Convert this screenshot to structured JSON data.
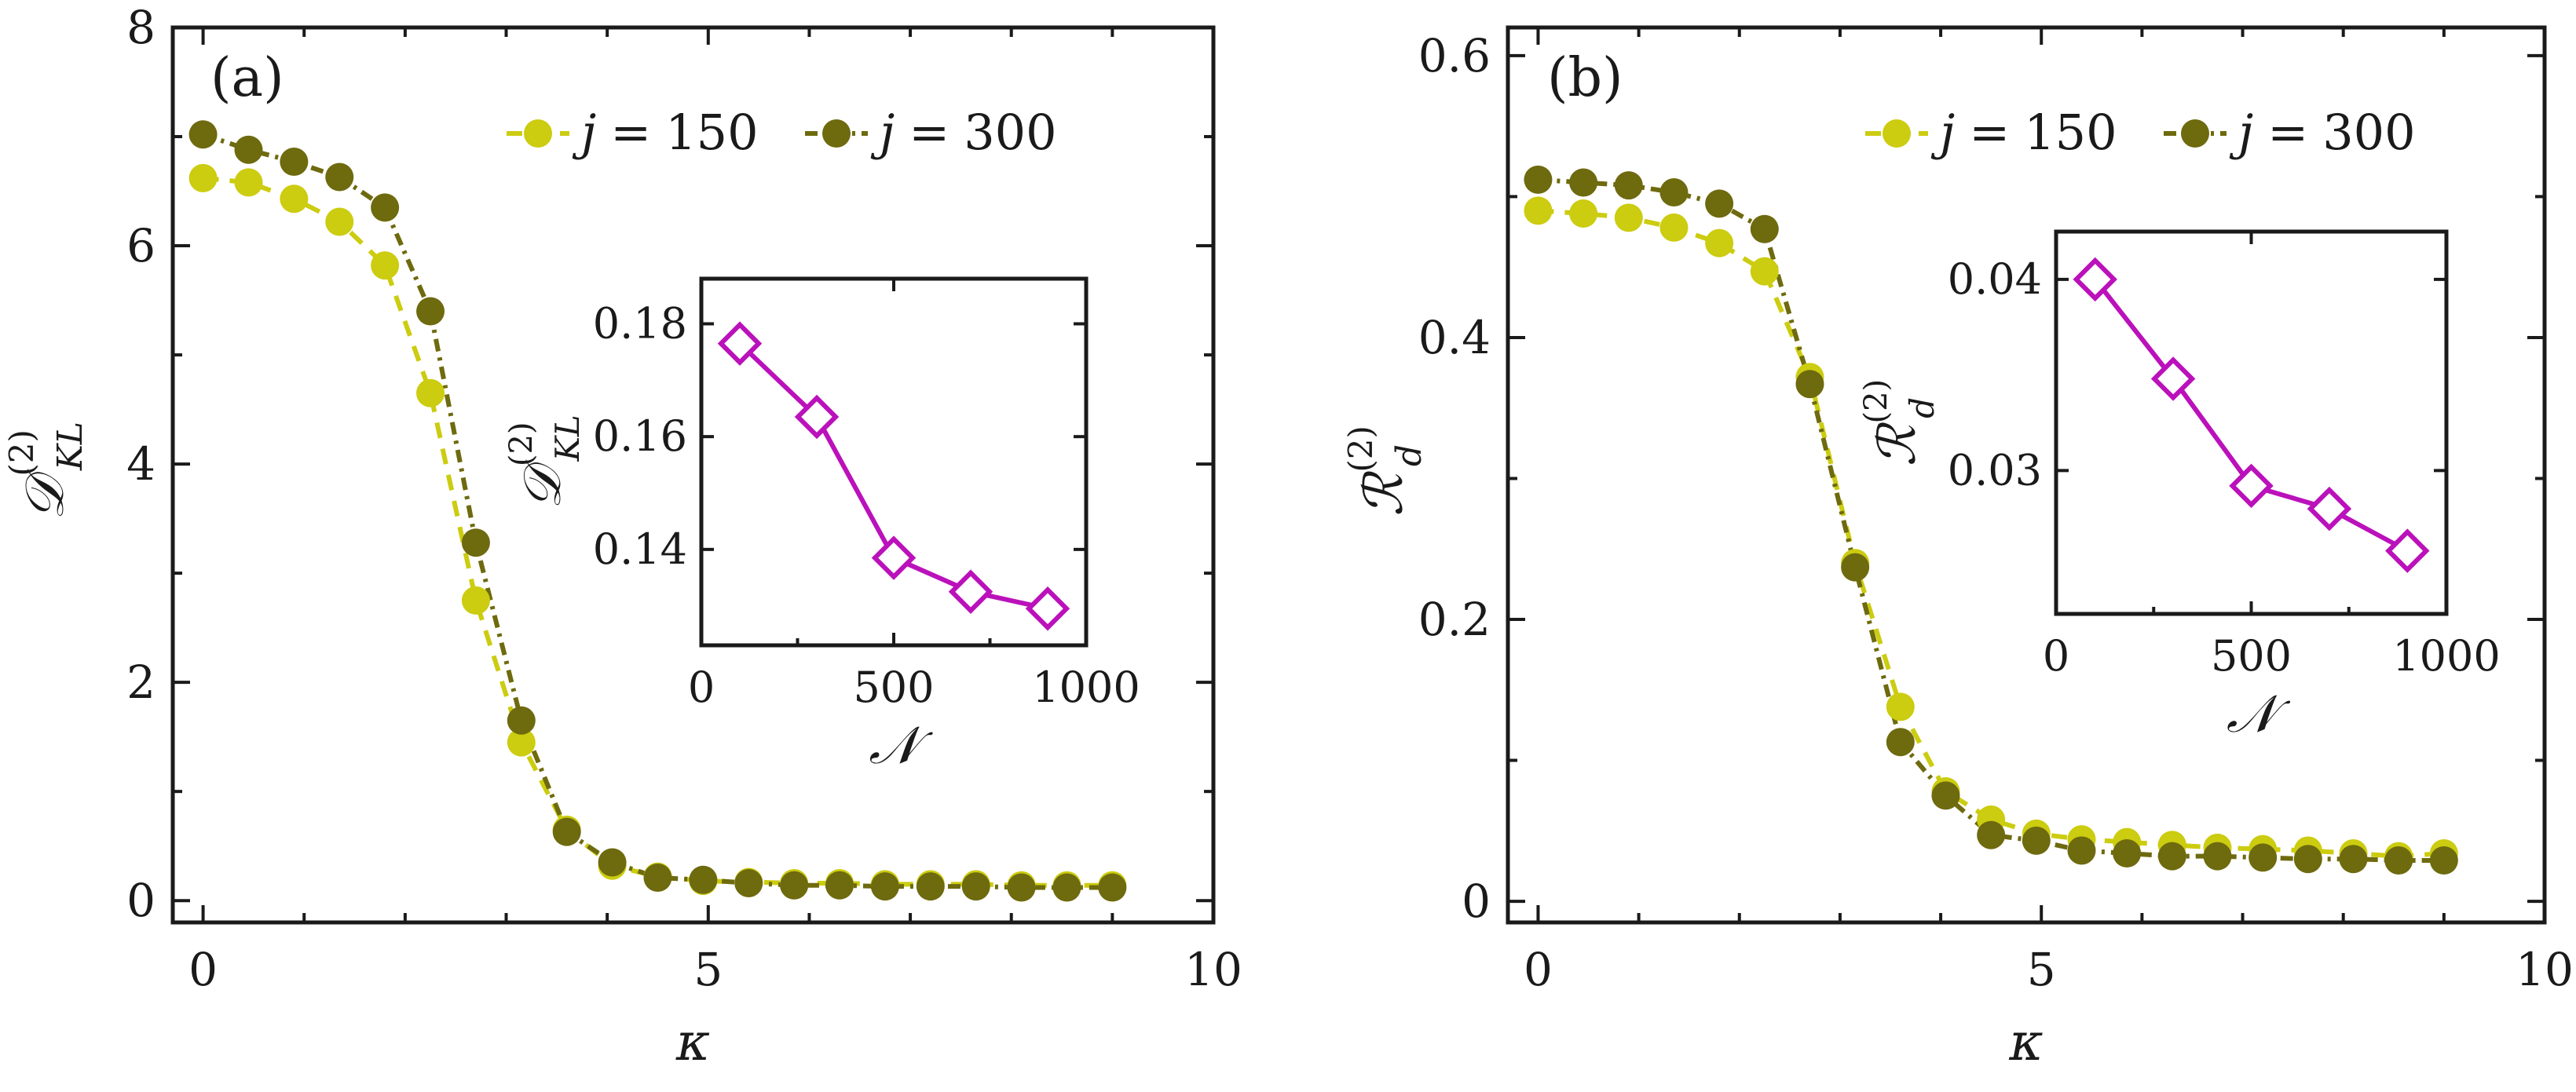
{
  "colors": {
    "j150": "#cccc10",
    "j300": "#6e6a0e",
    "inset": "#bb11bb",
    "axis": "#1a1a1a"
  },
  "chart_data": [
    {
      "type": "line",
      "panel_label": "(a)",
      "xlabel": "κ",
      "ylabel_main": "𝒟",
      "ylabel_sup": "(2)",
      "ylabel_sub": "KL",
      "xlim": [
        -0.3,
        10
      ],
      "ylim": [
        -0.2,
        8
      ],
      "xticks": [
        0,
        5,
        10
      ],
      "yticks": [
        0,
        2,
        4,
        6,
        8
      ],
      "legend_pos": "top-right",
      "series": [
        {
          "name_var": "j",
          "name_eq": "=",
          "name_val": "150",
          "style": "dashed",
          "x": [
            0,
            0.45,
            0.9,
            1.35,
            1.8,
            2.25,
            2.7,
            3.15,
            3.6,
            4.05,
            4.5,
            4.95,
            5.4,
            5.85,
            6.3,
            6.75,
            7.2,
            7.65,
            8.1,
            8.55,
            9.0
          ],
          "y": [
            6.62,
            6.58,
            6.43,
            6.22,
            5.82,
            4.65,
            2.75,
            1.45,
            0.65,
            0.32,
            0.22,
            0.18,
            0.17,
            0.16,
            0.16,
            0.15,
            0.15,
            0.15,
            0.14,
            0.14,
            0.14
          ]
        },
        {
          "name_var": "j",
          "name_eq": "=",
          "name_val": "300",
          "style": "dashdot",
          "x": [
            0,
            0.45,
            0.9,
            1.35,
            1.8,
            2.25,
            2.7,
            3.15,
            3.6,
            4.05,
            4.5,
            4.95,
            5.4,
            5.85,
            6.3,
            6.75,
            7.2,
            7.65,
            8.1,
            8.55,
            9.0
          ],
          "y": [
            7.02,
            6.88,
            6.77,
            6.63,
            6.35,
            5.4,
            3.28,
            1.65,
            0.63,
            0.35,
            0.21,
            0.19,
            0.16,
            0.14,
            0.14,
            0.13,
            0.13,
            0.13,
            0.12,
            0.12,
            0.12
          ]
        }
      ],
      "inset": {
        "type": "line",
        "xlabel": "𝒩",
        "ylabel_main": "𝒟",
        "ylabel_sup": "(2)",
        "ylabel_sub": "KL",
        "xlim": [
          0,
          1000
        ],
        "ylim": [
          0.123,
          0.188
        ],
        "xticks": [
          0,
          500,
          1000
        ],
        "yticks": [
          0.14,
          0.16,
          0.18
        ],
        "ytick_labels": [
          "0.14",
          "0.16",
          "0.18"
        ],
        "x": [
          100,
          300,
          500,
          700,
          900
        ],
        "y": [
          0.1765,
          0.1635,
          0.1385,
          0.1325,
          0.1295
        ]
      }
    },
    {
      "type": "line",
      "panel_label": "(b)",
      "xlabel": "κ",
      "ylabel_main": "ℛ",
      "ylabel_sup": "(2)",
      "ylabel_sub": "d",
      "xlim": [
        -0.3,
        10
      ],
      "ylim": [
        -0.015,
        0.62
      ],
      "xticks": [
        0,
        5,
        10
      ],
      "yticks": [
        0,
        0.2,
        0.4,
        0.6
      ],
      "ytick_labels": [
        "0",
        "0.2",
        "0.4",
        "0.6"
      ],
      "legend_pos": "top-right",
      "series": [
        {
          "name_var": "j",
          "name_eq": "=",
          "name_val": "150",
          "style": "dashed",
          "x": [
            0,
            0.45,
            0.9,
            1.35,
            1.8,
            2.25,
            2.7,
            3.15,
            3.6,
            4.05,
            4.5,
            4.95,
            5.4,
            5.85,
            6.3,
            6.75,
            7.2,
            7.65,
            8.1,
            8.55,
            9.0
          ],
          "y": [
            0.49,
            0.488,
            0.485,
            0.478,
            0.467,
            0.447,
            0.372,
            0.24,
            0.138,
            0.078,
            0.058,
            0.048,
            0.044,
            0.042,
            0.04,
            0.038,
            0.037,
            0.036,
            0.034,
            0.032,
            0.034
          ]
        },
        {
          "name_var": "j",
          "name_eq": "=",
          "name_val": "300",
          "style": "dashdot",
          "x": [
            0,
            0.45,
            0.9,
            1.35,
            1.8,
            2.25,
            2.7,
            3.15,
            3.6,
            4.05,
            4.5,
            4.95,
            5.4,
            5.85,
            6.3,
            6.75,
            7.2,
            7.65,
            8.1,
            8.55,
            9.0
          ],
          "y": [
            0.512,
            0.51,
            0.508,
            0.503,
            0.495,
            0.477,
            0.367,
            0.237,
            0.113,
            0.075,
            0.047,
            0.043,
            0.036,
            0.034,
            0.032,
            0.032,
            0.031,
            0.03,
            0.03,
            0.029,
            0.029
          ]
        }
      ],
      "inset": {
        "type": "line",
        "xlabel": "𝒩",
        "ylabel_main": "ℛ",
        "ylabel_sup": "(2)",
        "ylabel_sub": "d",
        "xlim": [
          0,
          1000
        ],
        "ylim": [
          0.0225,
          0.0425
        ],
        "xticks": [
          0,
          500,
          1000
        ],
        "yticks": [
          0.03,
          0.04
        ],
        "ytick_labels": [
          "0.03",
          "0.04"
        ],
        "x": [
          100,
          300,
          500,
          700,
          900
        ],
        "y": [
          0.04,
          0.0348,
          0.0292,
          0.028,
          0.0258
        ]
      }
    }
  ]
}
